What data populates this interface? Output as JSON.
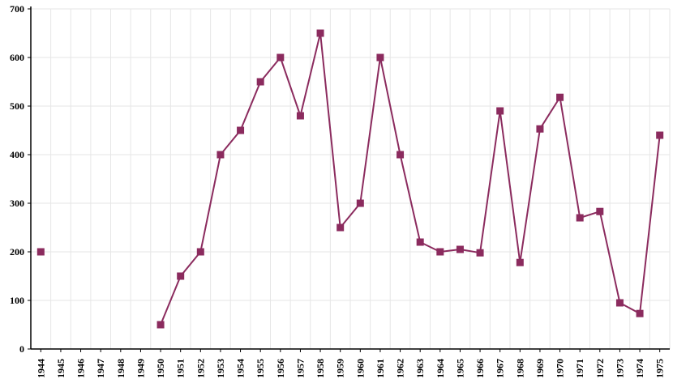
{
  "chart_data": {
    "type": "line",
    "title": "",
    "xlabel": "",
    "ylabel": "",
    "ylim": [
      0,
      700
    ],
    "yticks": [
      0,
      100,
      200,
      300,
      400,
      500,
      600,
      700
    ],
    "grid": true,
    "legend": "none",
    "marker": "square",
    "series_color": "#8b2b5e",
    "categories": [
      "1944",
      "1945",
      "1946",
      "1947",
      "1948",
      "1949",
      "1950",
      "1951",
      "1952",
      "1953",
      "1954",
      "1955",
      "1956",
      "1957",
      "1958",
      "1959",
      "1960",
      "1961",
      "1962",
      "1963",
      "1964",
      "1965",
      "1966",
      "1967",
      "1968",
      "1969",
      "1970",
      "1971",
      "1972",
      "1973",
      "1974",
      "1975"
    ],
    "series": [
      {
        "values": [
          200,
          null,
          null,
          null,
          null,
          null,
          50,
          150,
          200,
          400,
          450,
          550,
          600,
          480,
          650,
          250,
          300,
          600,
          400,
          220,
          200,
          205,
          198,
          490,
          178,
          453,
          518,
          270,
          283,
          95,
          73,
          440
        ]
      }
    ]
  }
}
